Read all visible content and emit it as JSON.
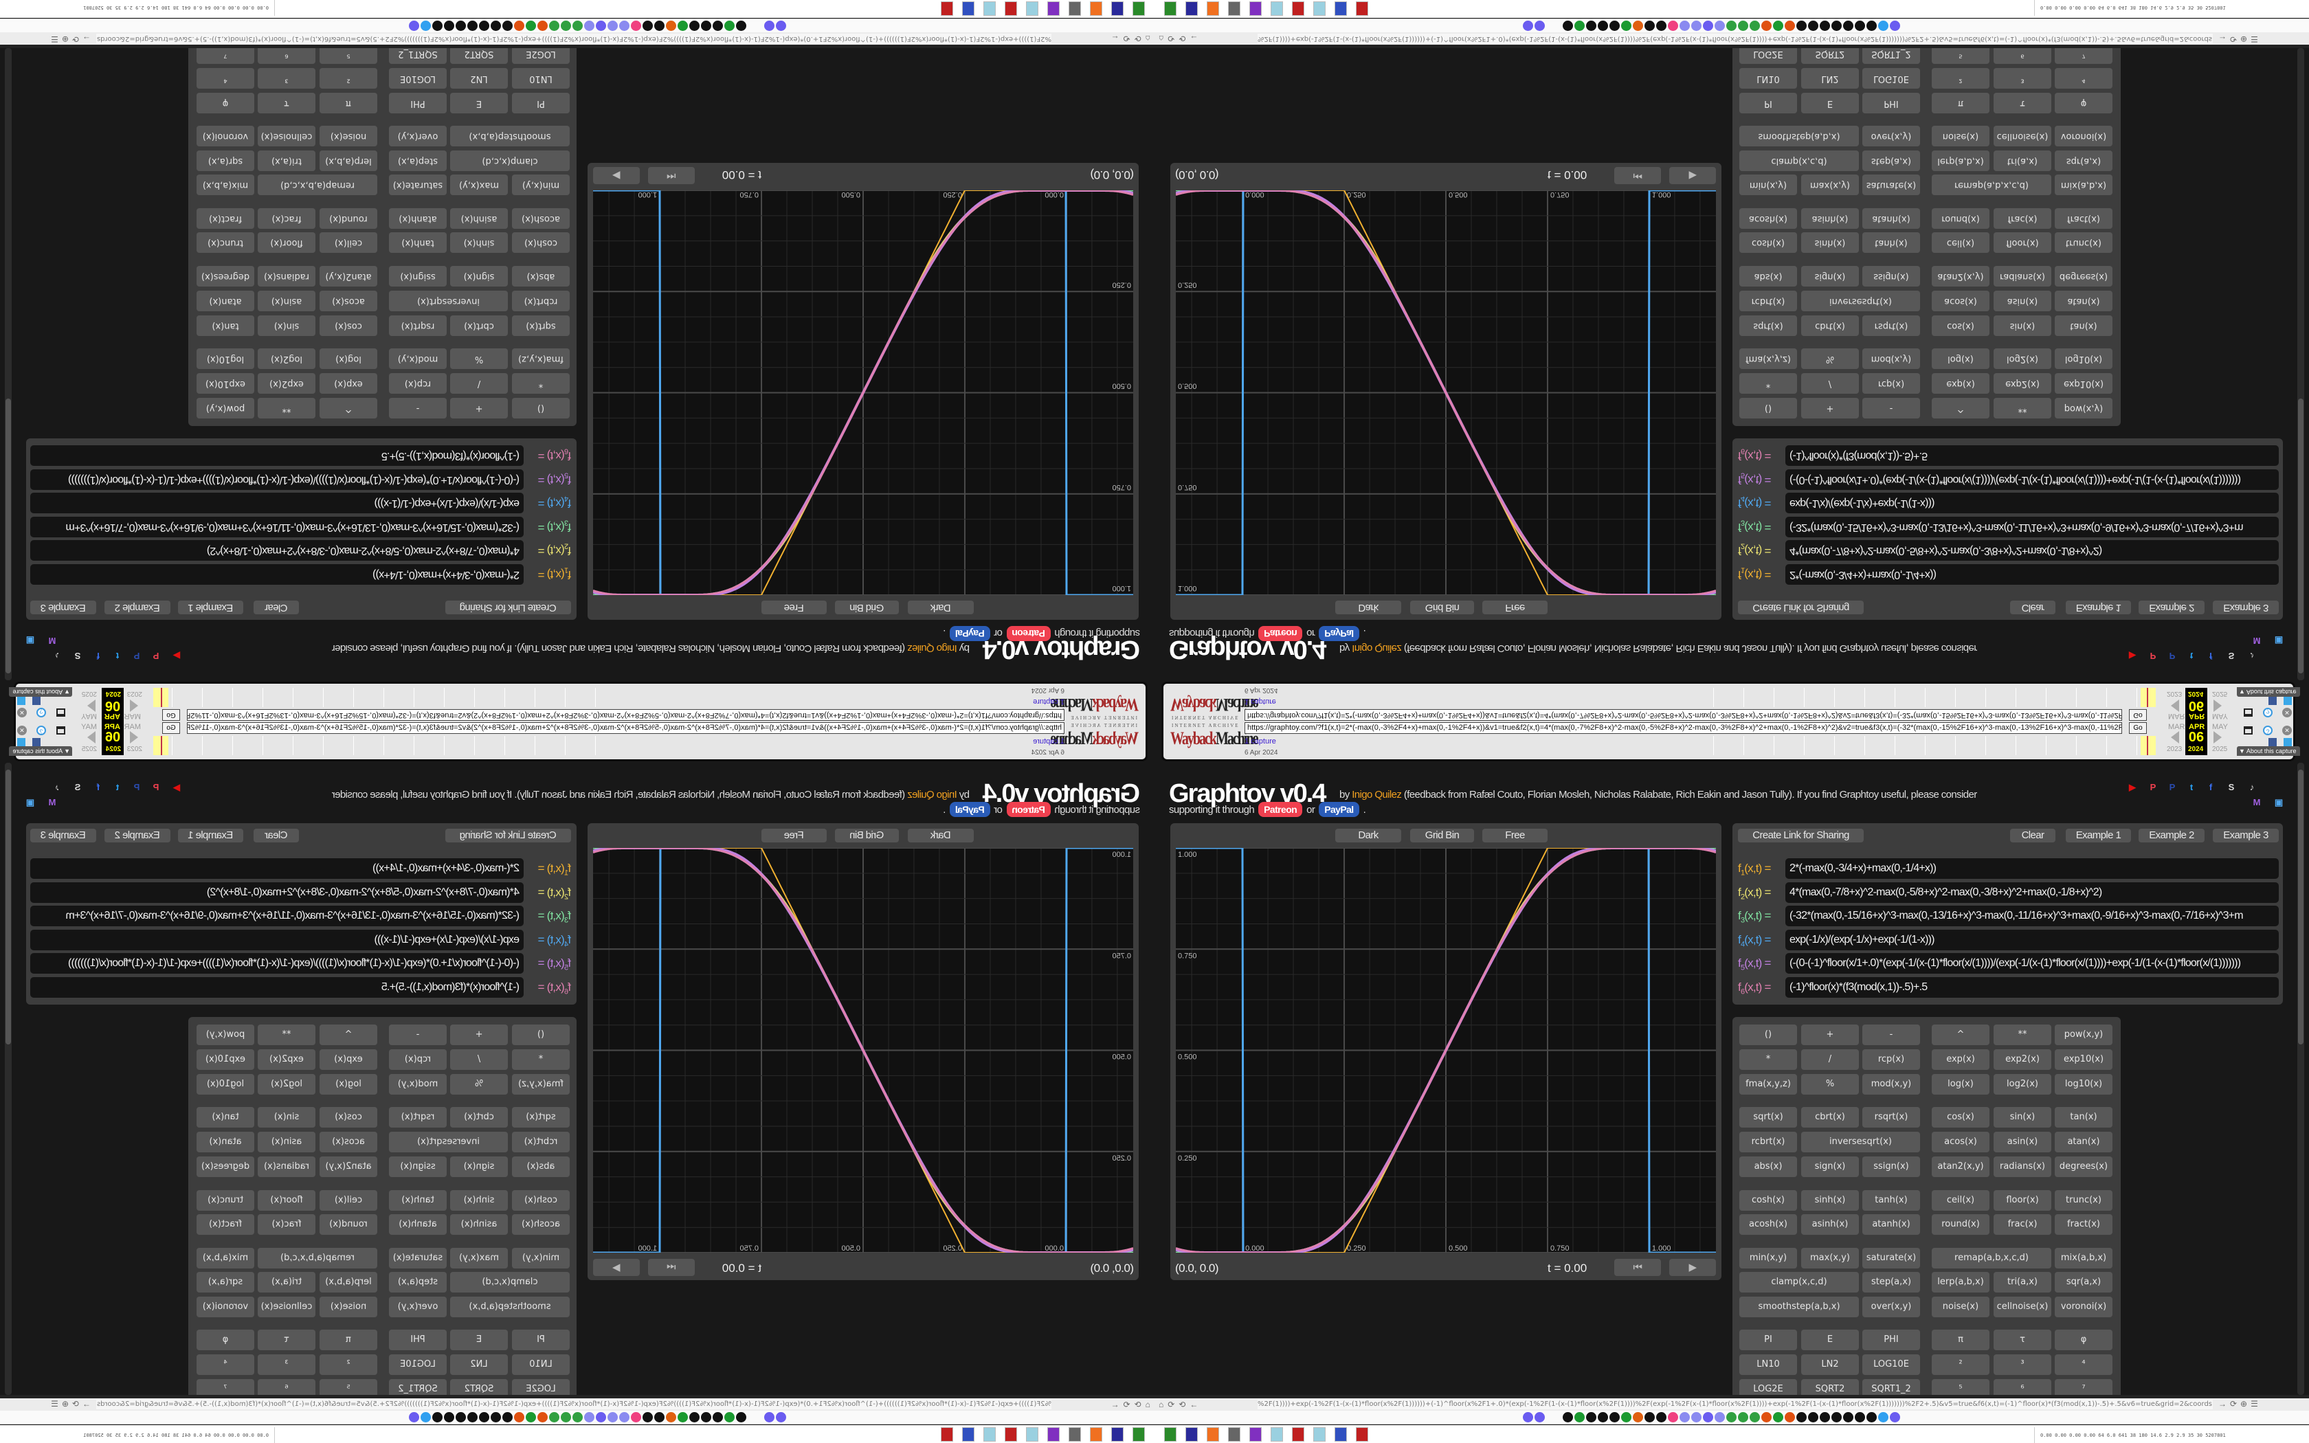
{
  "wayback": {
    "logo_top": "INTERNET ARCHIVE",
    "logo_main_a": "Wayback",
    "logo_main_b": "Machine",
    "url": "https://graphtoy.com/?f1(x,t)=2*(-max(0,-3%2F4+x)+max(0,-1%2F4+x))&v1=true&f2(x,t)=4*(max(0,-7%2F8+x)^2-max(0,-5%2F8+x)^2-max(0,-3%2F8+x)^2+max(0,-1%2F8+x)^2)&v2=true&f3(x,t)=(-32*(max(0,-15%2F16+x)^3-max(0,-13%2F16+x)^3-max(0,-11%2F16+x",
    "go": "Go",
    "captures": "1 capture",
    "date": "6 Apr 2024",
    "months": [
      "MAR",
      "APR",
      "MAY"
    ],
    "day": "06",
    "years": [
      "2023",
      "2024",
      "2025"
    ],
    "about": "▼ About this capture"
  },
  "header": {
    "title": "Graphtoy v0.4",
    "by": "by",
    "author": "Inigo Quilez",
    "credits": "(feedback from Rafæl Couto, Florian Mosleh, Nicholas Ralabate, Rich Eakin and Jason Tully). If you find Graphtoy useful, please consider",
    "supporting": "supporting it through",
    "patreon": "Patreon",
    "or": "or",
    "paypal": "PayPal",
    "period": "."
  },
  "social": [
    {
      "icon": "youtube-icon",
      "glyph": "▶",
      "color": "#e01010"
    },
    {
      "icon": "patreon-icon",
      "glyph": "P",
      "color": "#f0404f"
    },
    {
      "icon": "paypal-icon",
      "glyph": "P",
      "color": "#2a4cb0"
    },
    {
      "icon": "twitter-icon",
      "glyph": "t",
      "color": "#2a9ff0"
    },
    {
      "icon": "facebook-icon",
      "glyph": "f",
      "color": "#3a6ff0"
    },
    {
      "icon": "shadertoy-icon",
      "glyph": "S",
      "color": "#dddddd"
    },
    {
      "icon": "tiktok-icon",
      "glyph": "♪",
      "color": "#dddddd"
    },
    {
      "icon": "mastodon-icon",
      "glyph": "M",
      "color": "#a060e0"
    },
    {
      "icon": "twitch-icon",
      "glyph": "▣",
      "color": "#50a8f0"
    }
  ],
  "graph": {
    "buttons": [
      "Dark",
      "Grid Bin",
      "Free"
    ],
    "xlim": [
      -0.164,
      1.164
    ],
    "ylim": [
      0,
      1.0
    ],
    "x_ticks": [
      "0.000",
      "0.250",
      "0.500",
      "0.750",
      "1.000"
    ],
    "y_ticks": [
      "1.000",
      "0.750",
      "0.500",
      "0.250"
    ],
    "grid": true,
    "coords": "(0.0, 0.0)",
    "time": "t = 0.00"
  },
  "formulas": {
    "create_link": "Create Link for Sharing",
    "clear": "Clear",
    "examples": [
      "Example 1",
      "Example 2",
      "Example 3"
    ],
    "rows": [
      {
        "name": "f",
        "index": "1",
        "args": "(x,t) =",
        "color": "#f0b030",
        "expr": "2*(-max(0,-3/4+x)+max(0,-1/4+x))"
      },
      {
        "name": "f",
        "index": "2",
        "args": "(x,t) =",
        "color": "#e8e070",
        "expr": "4*(max(0,-7/8+x)^2-max(0,-5/8+x)^2-max(0,-3/8+x)^2+max(0,-1/8+x)^2)"
      },
      {
        "name": "f",
        "index": "3",
        "args": "(x,t) =",
        "color": "#80e0a0",
        "expr": "(-32*(max(0,-15/16+x)^3-max(0,-13/16+x)^3-max(0,-11/16+x)^3+max(0,-9/16+x)^3-max(0,-7/16+x)^3+m"
      },
      {
        "name": "f",
        "index": "4",
        "args": "(x,t) =",
        "color": "#50a8f0",
        "expr": "exp(-1/x)/(exp(-1/x)+exp(-1/(1-x)))"
      },
      {
        "name": "f",
        "index": "5",
        "args": "(x,t) =",
        "color": "#c080e0",
        "expr": "(-(0-(-1)^floor(x/1+.0)*(exp(-1/(x-(1)*floor(x/(1))))/(exp(-1/(x-(1)*floor(x/(1))))+exp(-1/(1-(x-(1)*floor(x/(1)))))))"
      },
      {
        "name": "f",
        "index": "6",
        "args": "(x,t) =",
        "color": "#e080b0",
        "expr": "(-1)^floor(x)*(f3(mod(x,1))-.5)+.5"
      }
    ]
  },
  "keyboard": {
    "rows": [
      [
        "()",
        "+",
        "-",
        "^",
        "**",
        "pow(x,y)"
      ],
      [
        "*",
        "/",
        "rcp(x)",
        "exp(x)",
        "exp2(x)",
        "exp10(x)"
      ],
      [
        "fma(x,y,z)",
        "%",
        "mod(x,y)",
        "log(x)",
        "log2(x)",
        "log10(x)"
      ],
      [
        "sqrt(x)",
        "cbrt(x)",
        "rsqrt(x)",
        "cos(x)",
        "sin(x)",
        "tan(x)"
      ],
      [
        "rcbrt(x)",
        "inversesqrt(x)",
        "acos(x)",
        "asin(x)",
        "atan(x)"
      ],
      [
        "abs(x)",
        "sign(x)",
        "ssign(x)",
        "atan2(x,y)",
        "radians(x)",
        "degrees(x)"
      ],
      [
        "cosh(x)",
        "sinh(x)",
        "tanh(x)",
        "ceil(x)",
        "floor(x)",
        "trunc(x)"
      ],
      [
        "acosh(x)",
        "asinh(x)",
        "atanh(x)",
        "round(x)",
        "frac(x)",
        "fract(x)"
      ],
      [
        "min(x,y)",
        "max(x,y)",
        "saturate(x)",
        "remap(a,b,x,c,d)",
        "mix(a,b,x)"
      ],
      [
        "clamp(x,c,d)",
        "step(a,x)",
        "lerp(a,b,x)",
        "tri(a,x)",
        "sqr(a,x)"
      ],
      [
        "smoothstep(a,b,x)",
        "over(x,y)",
        "noise(x)",
        "cellnoise(x)",
        "voronoi(x)"
      ],
      [
        "PI",
        "E",
        "PHI",
        "π",
        "τ",
        "φ"
      ],
      [
        "LN10",
        "LN2",
        "LOG10E",
        "²",
        "³",
        "⁴"
      ],
      [
        "LOG2E",
        "SQRT2",
        "SQRT1_2",
        "⁵",
        "⁶",
        "⁷"
      ]
    ]
  },
  "browser": {
    "url": "%2F(1))))+exp(-1%2F(1-(x-(1)*floor(x%2F(1))))))+(-1)^floor(x%2F1+.0)*(exp(-1%2F(1-(x-(1)*floor(x%2F(1))))%2F(exp(-1%2F(x-(1)*floor(x%2F(1))))+exp(-1%2F(1-(x-(1)*floor(x%2F(1)))))))%2F2+.5)&v5=true&f6(x,t)=(-1)^floor(x)*(f3(mod(x,1))-.5)+.5&v6=true&grid=2&coords=0.5,0.5,0.666535483870967",
    "tray": "0.00 0.00 0.00 0.00 64 6.0 641 38 180 14.6 2.9 2.9 35 30 5207801"
  }
}
